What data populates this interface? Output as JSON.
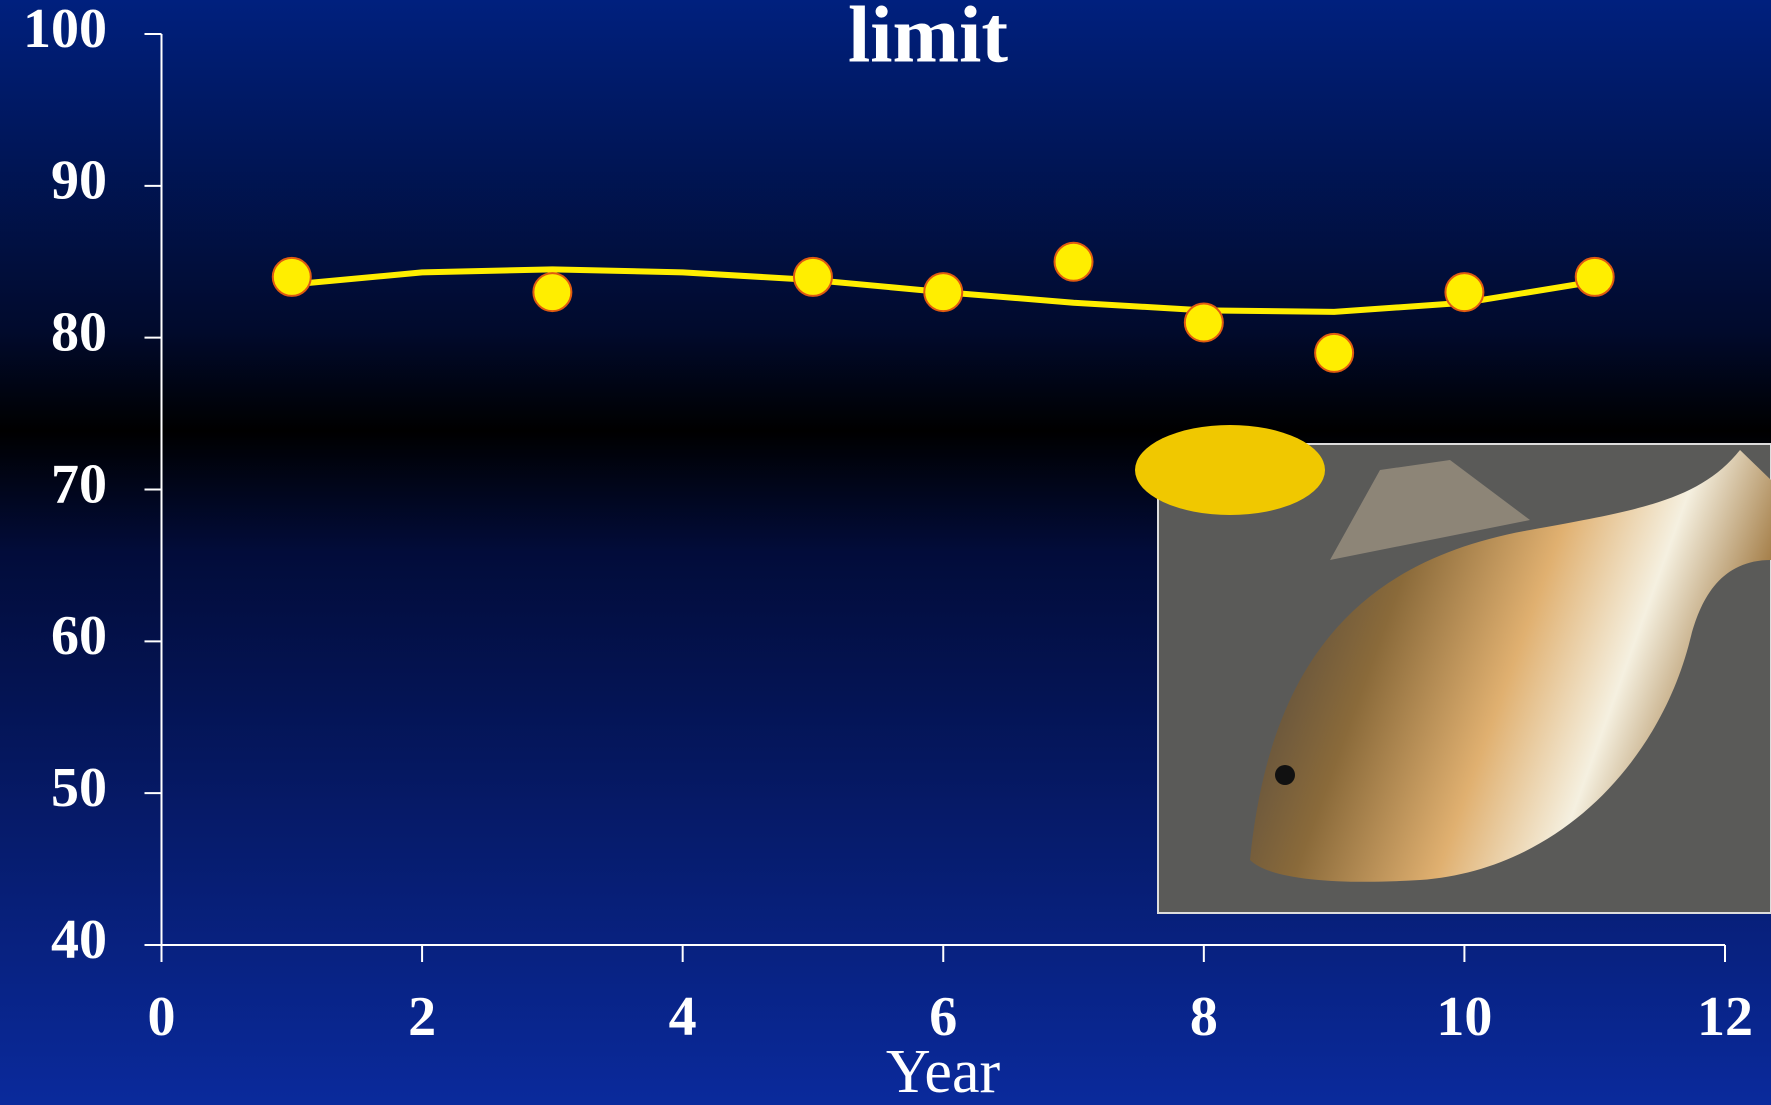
{
  "chart_data": {
    "type": "scatter",
    "title": "limit",
    "x_label": "Year",
    "series": [
      {
        "color": "#ffee00",
        "x": [
          1,
          3,
          5,
          6,
          7,
          8,
          9,
          10,
          11
        ],
        "values": [
          84,
          83,
          84,
          83,
          85,
          81,
          79,
          83,
          84
        ]
      },
      {
        "color": "#ffee00",
        "x": [
          1,
          2,
          3,
          4,
          5,
          6,
          7,
          8,
          9,
          10,
          11
        ],
        "values": [
          83.5,
          84.3,
          84.5,
          84.3,
          83.8,
          83.0,
          82.3,
          81.8,
          81.7,
          82.3,
          83.7
        ]
      }
    ],
    "xlim": [
      0,
      12
    ],
    "xticks": [
      0,
      2,
      4,
      6,
      8,
      10,
      12
    ],
    "ylim": [
      40,
      100
    ],
    "yticks": [
      40,
      50,
      60,
      70,
      80,
      90,
      100
    ]
  }
}
